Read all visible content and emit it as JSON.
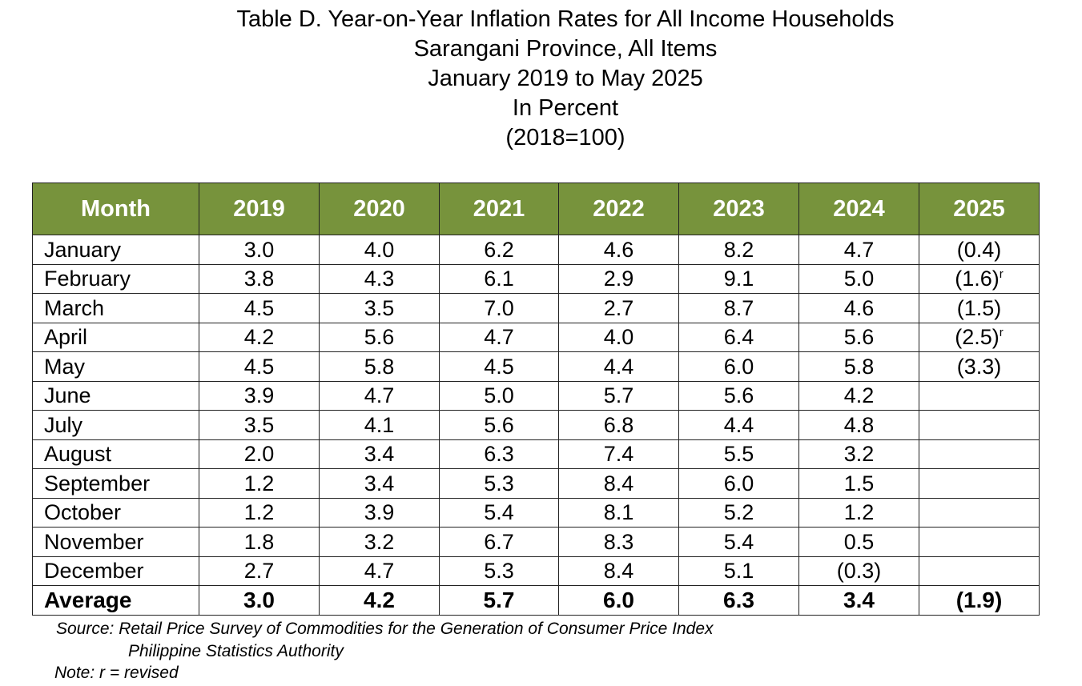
{
  "title_lines": [
    "Table D. Year-on-Year Inflation Rates for All Income Households",
    "Sarangani Province, All Items",
    "January 2019 to May 2025",
    "In Percent",
    "(2018=100)"
  ],
  "colors": {
    "header_bg": "#77933c",
    "header_text": "#ffffff",
    "border": "#222222"
  },
  "chart_data": {
    "type": "table",
    "title": "Table D. Year-on-Year Inflation Rates for All Income Households",
    "columns": [
      "Month",
      "2019",
      "2020",
      "2021",
      "2022",
      "2023",
      "2024",
      "2025"
    ],
    "rows": [
      {
        "month": "January",
        "values": [
          "3.0",
          "4.0",
          "6.2",
          "4.6",
          "8.2",
          "4.7",
          "(0.4)"
        ],
        "revised": [
          false,
          false,
          false,
          false,
          false,
          false,
          false
        ]
      },
      {
        "month": "February",
        "values": [
          "3.8",
          "4.3",
          "6.1",
          "2.9",
          "9.1",
          "5.0",
          "(1.6)"
        ],
        "revised": [
          false,
          false,
          false,
          false,
          false,
          false,
          true
        ]
      },
      {
        "month": "March",
        "values": [
          "4.5",
          "3.5",
          "7.0",
          "2.7",
          "8.7",
          "4.6",
          "(1.5)"
        ],
        "revised": [
          false,
          false,
          false,
          false,
          false,
          false,
          false
        ]
      },
      {
        "month": "April",
        "values": [
          "4.2",
          "5.6",
          "4.7",
          "4.0",
          "6.4",
          "5.6",
          "(2.5)"
        ],
        "revised": [
          false,
          false,
          false,
          false,
          false,
          false,
          true
        ]
      },
      {
        "month": "May",
        "values": [
          "4.5",
          "5.8",
          "4.5",
          "4.4",
          "6.0",
          "5.8",
          "(3.3)"
        ],
        "revised": [
          false,
          false,
          false,
          false,
          false,
          false,
          false
        ]
      },
      {
        "month": "June",
        "values": [
          "3.9",
          "4.7",
          "5.0",
          "5.7",
          "5.6",
          "4.2",
          ""
        ],
        "revised": [
          false,
          false,
          false,
          false,
          false,
          false,
          false
        ]
      },
      {
        "month": "July",
        "values": [
          "3.5",
          "4.1",
          "5.6",
          "6.8",
          "4.4",
          "4.8",
          ""
        ],
        "revised": [
          false,
          false,
          false,
          false,
          false,
          false,
          false
        ]
      },
      {
        "month": "August",
        "values": [
          "2.0",
          "3.4",
          "6.3",
          "7.4",
          "5.5",
          "3.2",
          ""
        ],
        "revised": [
          false,
          false,
          false,
          false,
          false,
          false,
          false
        ]
      },
      {
        "month": "September",
        "values": [
          "1.2",
          "3.4",
          "5.3",
          "8.4",
          "6.0",
          "1.5",
          ""
        ],
        "revised": [
          false,
          false,
          false,
          false,
          false,
          false,
          false
        ]
      },
      {
        "month": "October",
        "values": [
          "1.2",
          "3.9",
          "5.4",
          "8.1",
          "5.2",
          "1.2",
          ""
        ],
        "revised": [
          false,
          false,
          false,
          false,
          false,
          false,
          false
        ]
      },
      {
        "month": "November",
        "values": [
          "1.8",
          "3.2",
          "6.7",
          "8.3",
          "5.4",
          "0.5",
          ""
        ],
        "revised": [
          false,
          false,
          false,
          false,
          false,
          false,
          false
        ]
      },
      {
        "month": "December",
        "values": [
          "2.7",
          "4.7",
          "5.3",
          "8.4",
          "5.1",
          "(0.3)",
          ""
        ],
        "revised": [
          false,
          false,
          false,
          false,
          false,
          false,
          false
        ]
      }
    ],
    "average": {
      "label": "Average",
      "values": [
        "3.0",
        "4.2",
        "5.7",
        "6.0",
        "6.3",
        "3.4",
        "(1.9)"
      ]
    },
    "revised_mark": "r"
  },
  "source_line1": "Source: Retail Price Survey of Commodities for the Generation of Consumer Price Index",
  "source_line2": "Philippine Statistics Authority",
  "note": "Note: r = revised"
}
